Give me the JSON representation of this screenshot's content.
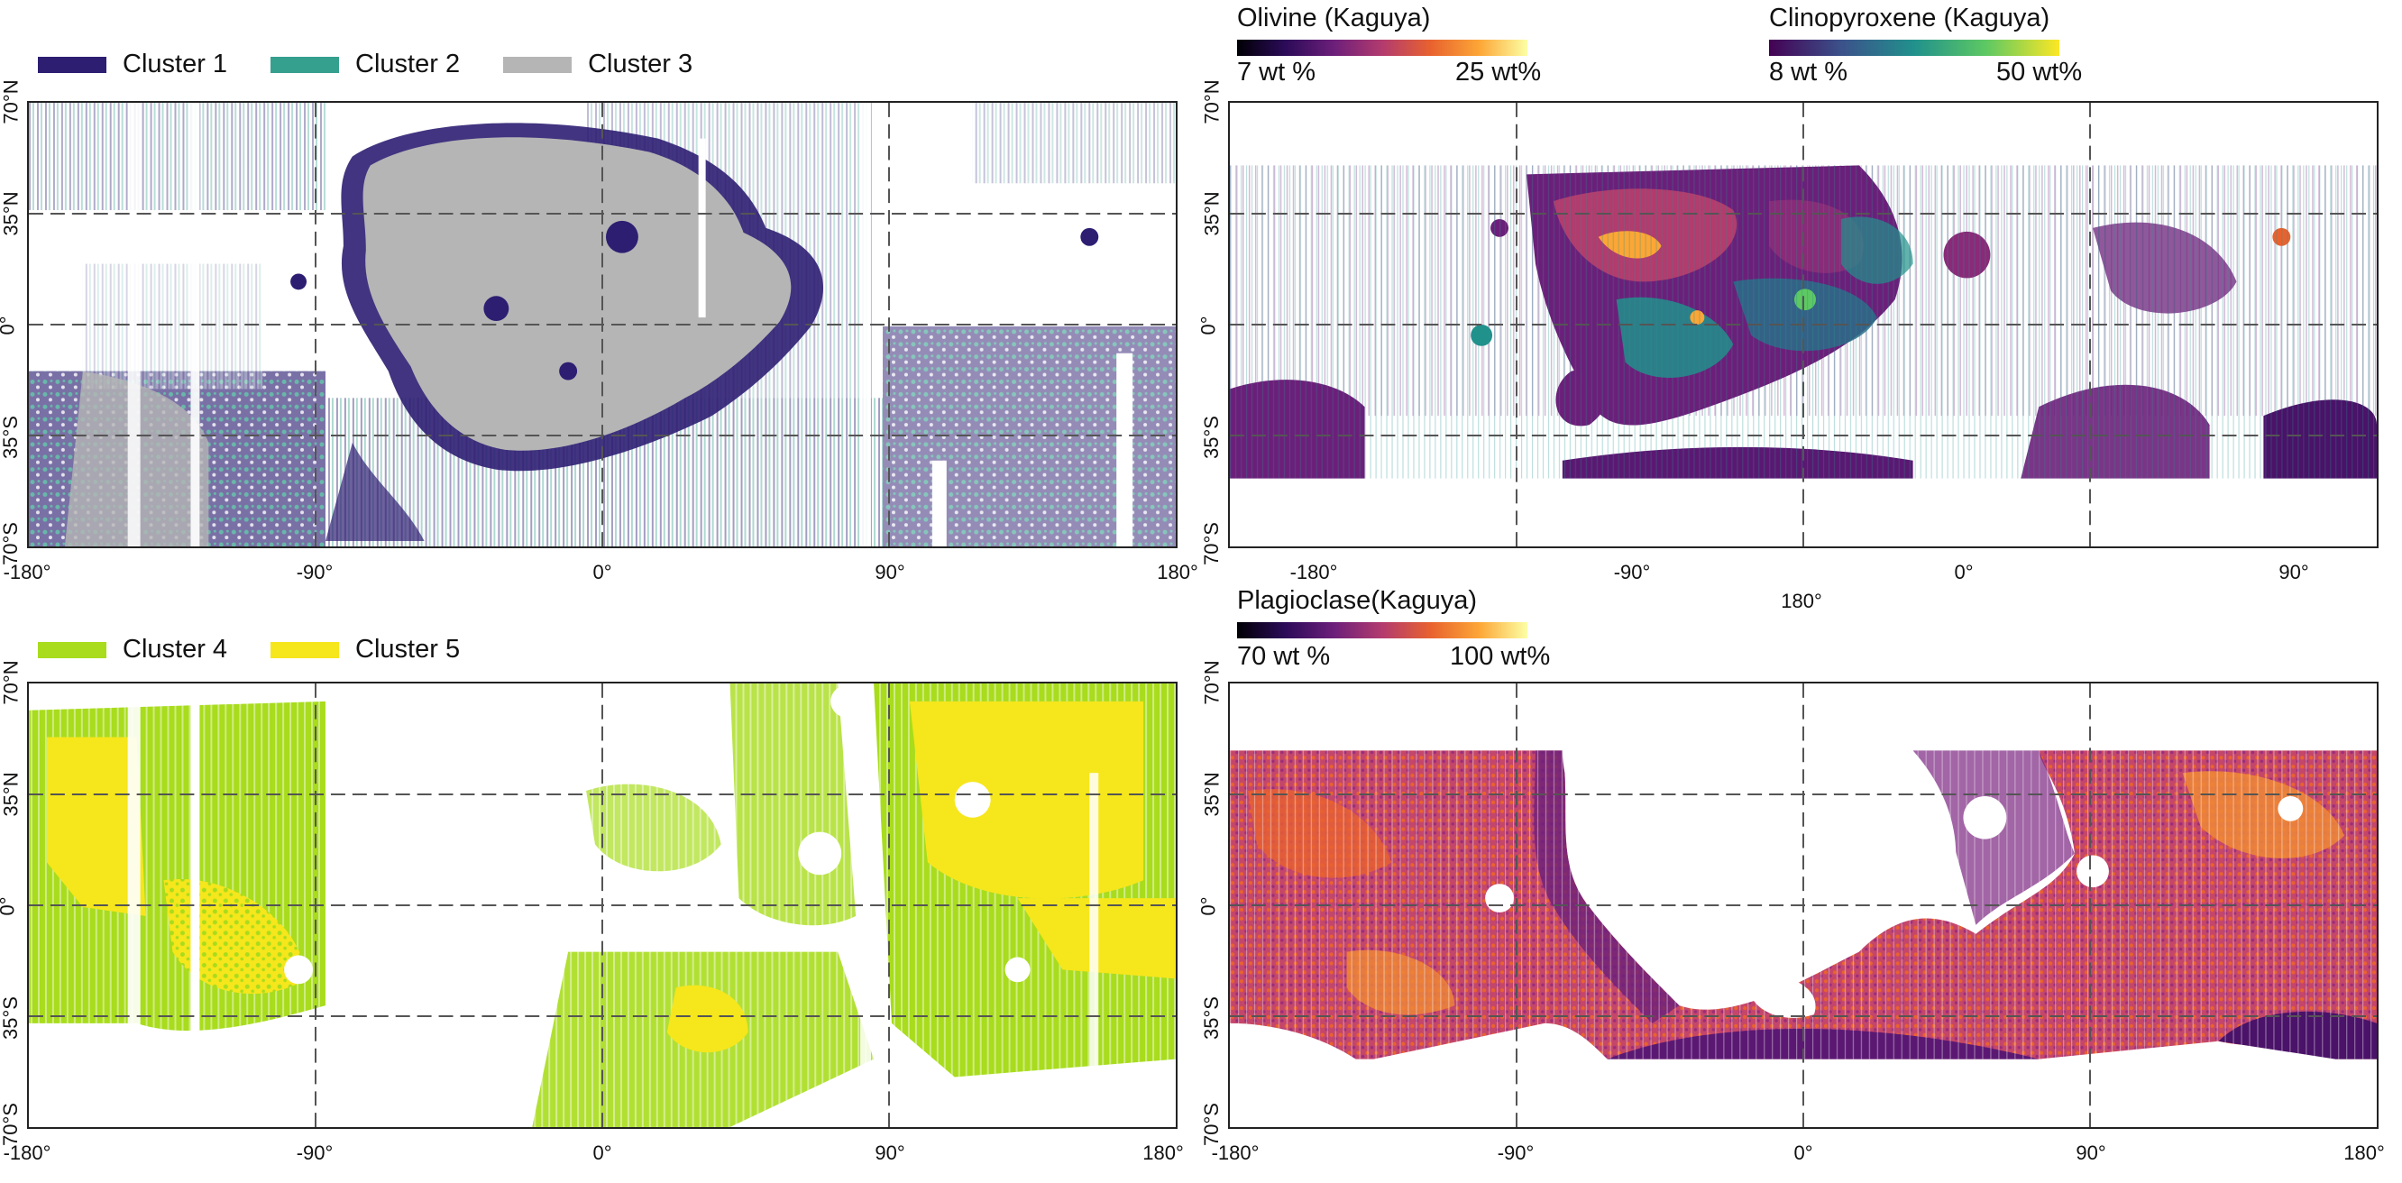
{
  "colors": {
    "cluster1": "#2d1e72",
    "cluster2": "#35a08e",
    "cluster3": "#b5b5b5",
    "cluster4": "#a8dc1c",
    "cluster5": "#f6e61c",
    "grid": "#555555"
  },
  "panel_tl": {
    "legend": [
      {
        "label": "Cluster 1",
        "color": "#2d1e72"
      },
      {
        "label": "Cluster 2",
        "color": "#35a08e"
      },
      {
        "label": "Cluster 3",
        "color": "#b5b5b5"
      }
    ]
  },
  "panel_bl": {
    "legend": [
      {
        "label": "Cluster 4",
        "color": "#a8dc1c"
      },
      {
        "label": "Cluster 5",
        "color": "#f6e61c"
      }
    ]
  },
  "panel_tr": {
    "olivine": {
      "title": "Olivine (Kaguya)",
      "min": "7 wt %",
      "max": "25 wt%"
    },
    "clinopyroxene": {
      "title": "Clinopyroxene (Kaguya)",
      "min": "8 wt %",
      "max": "50 wt%"
    },
    "x_ticks": [
      "-180°",
      "-90°",
      "0°",
      "90°"
    ],
    "x_extra": "180°"
  },
  "panel_br": {
    "plagioclase": {
      "title": "Plagioclase(Kaguya)",
      "min": "70 wt %",
      "max": "100 wt%"
    }
  },
  "axes": {
    "x_ticks": [
      "-180°",
      "-90°",
      "0°",
      "90°",
      "180°"
    ],
    "y_ticks": [
      "70°N",
      "35°N",
      "0°",
      "35°S",
      "70°S"
    ]
  }
}
